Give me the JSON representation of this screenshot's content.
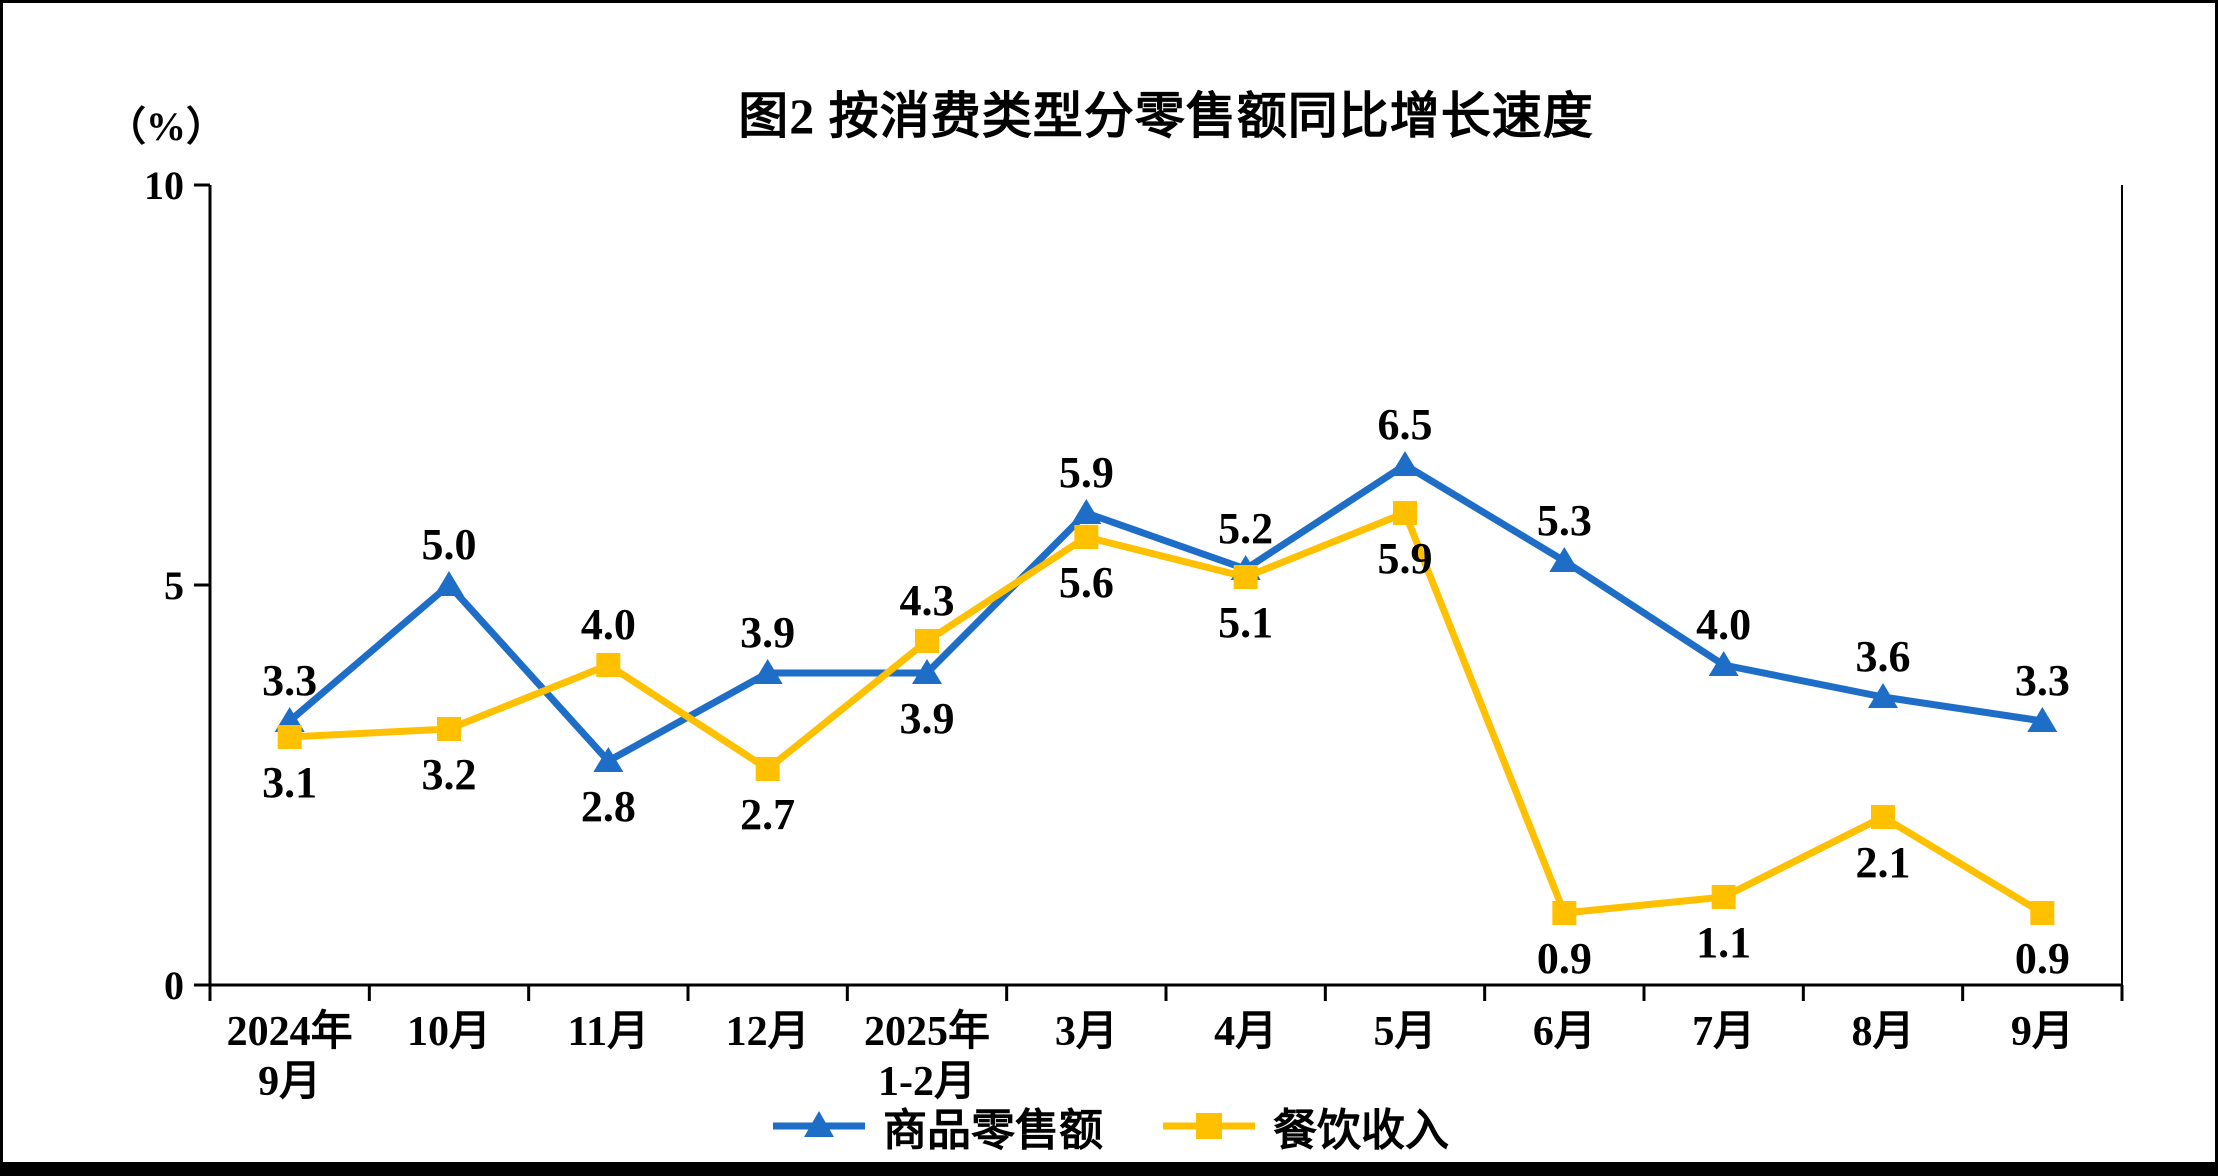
{
  "page": {
    "background": "#ffffff",
    "frame_color": "#000000"
  },
  "chart_data": {
    "type": "line",
    "title": "图2 按消费类型分零售额同比增长速度",
    "unit_label": "（%）",
    "ylim": [
      0,
      10
    ],
    "yticks": [
      0,
      5,
      10
    ],
    "grid": false,
    "legend_position": "bottom",
    "categories": [
      [
        "2024年",
        "9月"
      ],
      [
        "10月"
      ],
      [
        "11月"
      ],
      [
        "12月"
      ],
      [
        "2025年",
        "1-2月"
      ],
      [
        "3月"
      ],
      [
        "4月"
      ],
      [
        "5月"
      ],
      [
        "6月"
      ],
      [
        "7月"
      ],
      [
        "8月"
      ],
      [
        "9月"
      ]
    ],
    "series": [
      {
        "key": "goods-retail",
        "name": "商品零售额",
        "color": "#1E6EC8",
        "marker": "triangle",
        "values": [
          3.3,
          5.0,
          2.8,
          3.9,
          3.9,
          5.9,
          5.2,
          6.5,
          5.3,
          4.0,
          3.6,
          3.3
        ],
        "label_positions": [
          "above",
          "above",
          "below",
          "above",
          "below",
          "above",
          "above",
          "above",
          "above",
          "above",
          "above",
          "above"
        ]
      },
      {
        "key": "catering-income",
        "name": "餐饮收入",
        "color": "#FFC000",
        "marker": "square",
        "values": [
          3.1,
          3.2,
          4.0,
          2.7,
          4.3,
          5.6,
          5.1,
          5.9,
          0.9,
          1.1,
          2.1,
          0.9
        ],
        "label_positions": [
          "below",
          "below",
          "above",
          "below",
          "above",
          "below",
          "below",
          "below",
          "below",
          "below",
          "below",
          "below"
        ]
      }
    ]
  }
}
